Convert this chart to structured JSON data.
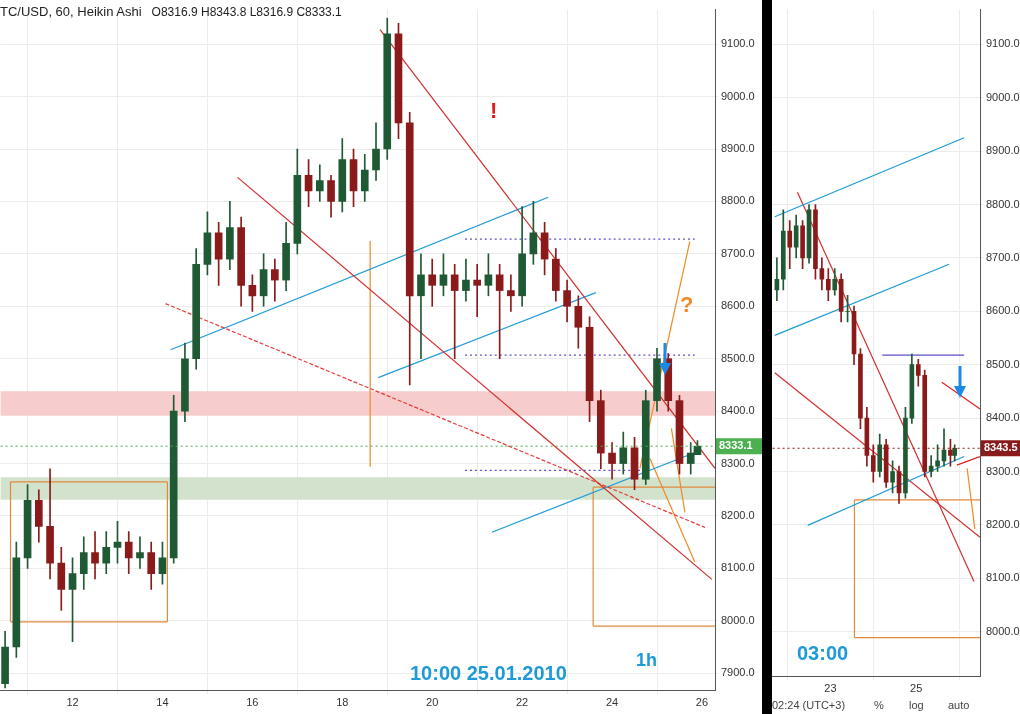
{
  "chart_data": [
    {
      "type": "candlestick",
      "title": "TC/USD, 60, Heikin Ashi",
      "subtitle": "O8316.9 H8343.8 L8316.9 C8333.1",
      "grid": true,
      "xlim": [
        10.4,
        26.29
      ],
      "xticks": [
        12,
        14,
        16,
        18,
        20,
        22,
        24,
        26
      ],
      "ylim": [
        7868,
        9166
      ],
      "yticks": [
        {
          "value": 7900,
          "label": "7900.0"
        },
        {
          "value": 8000,
          "label": "8000.0"
        },
        {
          "value": 8100,
          "label": "8100.0"
        },
        {
          "value": 8200,
          "label": "8200.0"
        },
        {
          "value": 8300,
          "label": "8300.0"
        },
        {
          "value": 8400,
          "label": "8400.0"
        },
        {
          "value": 8500,
          "label": "8500.0"
        },
        {
          "value": 8600,
          "label": "8600.0"
        },
        {
          "value": 8700,
          "label": "8700.0"
        },
        {
          "value": 8800,
          "label": "8800.0"
        },
        {
          "value": 8900,
          "label": "8900.0"
        },
        {
          "value": 9000,
          "label": "9000.0"
        },
        {
          "value": 9100,
          "label": "9100.0"
        }
      ],
      "x": [
        10.5,
        10.75,
        11,
        11.25,
        11.5,
        11.75,
        12,
        12.25,
        12.5,
        12.75,
        13,
        13.25,
        13.5,
        13.75,
        14,
        14.25,
        14.5,
        14.75,
        15,
        15.25,
        15.5,
        15.75,
        16,
        16.25,
        16.5,
        16.75,
        17,
        17.25,
        17.5,
        17.75,
        18,
        18.25,
        18.5,
        18.75,
        19,
        19.25,
        19.5,
        19.75,
        20,
        20.25,
        20.5,
        20.75,
        21,
        21.25,
        21.5,
        21.75,
        22,
        22.25,
        22.5,
        22.75,
        23,
        23.25,
        23.5,
        23.75,
        24,
        24.25,
        24.5,
        24.75,
        25,
        25.25,
        25.5,
        25.75,
        25.9
      ],
      "ohlc": [
        [
          7880,
          7980,
          7872,
          7950
        ],
        [
          7950,
          8150,
          7930,
          8120
        ],
        [
          8120,
          8260,
          8100,
          8230
        ],
        [
          8230,
          8250,
          8150,
          8180
        ],
        [
          8180,
          8290,
          8080,
          8110
        ],
        [
          8110,
          8140,
          8020,
          8060
        ],
        [
          8060,
          8120,
          7960,
          8090
        ],
        [
          8090,
          8160,
          8060,
          8130
        ],
        [
          8130,
          8170,
          8080,
          8110
        ],
        [
          8110,
          8170,
          8090,
          8140
        ],
        [
          8140,
          8190,
          8110,
          8150
        ],
        [
          8150,
          8170,
          8090,
          8120
        ],
        [
          8120,
          8160,
          8100,
          8130
        ],
        [
          8130,
          8150,
          8060,
          8090
        ],
        [
          8090,
          8150,
          8070,
          8120
        ],
        [
          8120,
          8430,
          8110,
          8400
        ],
        [
          8400,
          8530,
          8380,
          8500
        ],
        [
          8500,
          8710,
          8480,
          8680
        ],
        [
          8680,
          8780,
          8660,
          8740
        ],
        [
          8740,
          8760,
          8640,
          8690
        ],
        [
          8690,
          8800,
          8670,
          8750
        ],
        [
          8750,
          8770,
          8600,
          8640
        ],
        [
          8640,
          8660,
          8590,
          8620
        ],
        [
          8620,
          8700,
          8600,
          8670
        ],
        [
          8670,
          8690,
          8610,
          8650
        ],
        [
          8650,
          8760,
          8630,
          8720
        ],
        [
          8720,
          8900,
          8700,
          8850
        ],
        [
          8850,
          8880,
          8790,
          8820
        ],
        [
          8820,
          8870,
          8800,
          8840
        ],
        [
          8840,
          8850,
          8770,
          8800
        ],
        [
          8800,
          8920,
          8780,
          8880
        ],
        [
          8880,
          8900,
          8790,
          8820
        ],
        [
          8820,
          8890,
          8800,
          8860
        ],
        [
          8860,
          8950,
          8840,
          8900
        ],
        [
          8900,
          9150,
          8880,
          9120
        ],
        [
          9120,
          9140,
          8920,
          8950
        ],
        [
          8950,
          8970,
          8450,
          8620
        ],
        [
          8620,
          8700,
          8500,
          8660
        ],
        [
          8660,
          8690,
          8600,
          8640
        ],
        [
          8640,
          8700,
          8620,
          8660
        ],
        [
          8660,
          8680,
          8500,
          8630
        ],
        [
          8630,
          8690,
          8610,
          8650
        ],
        [
          8650,
          8680,
          8580,
          8640
        ],
        [
          8640,
          8700,
          8620,
          8660
        ],
        [
          8660,
          8680,
          8500,
          8630
        ],
        [
          8630,
          8660,
          8590,
          8620
        ],
        [
          8620,
          8790,
          8600,
          8700
        ],
        [
          8700,
          8800,
          8680,
          8740
        ],
        [
          8740,
          8760,
          8660,
          8690
        ],
        [
          8690,
          8710,
          8610,
          8630
        ],
        [
          8630,
          8650,
          8570,
          8600
        ],
        [
          8600,
          8620,
          8520,
          8560
        ],
        [
          8560,
          8580,
          8380,
          8420
        ],
        [
          8420,
          8440,
          8290,
          8320
        ],
        [
          8320,
          8340,
          8270,
          8300
        ],
        [
          8300,
          8360,
          8280,
          8330
        ],
        [
          8330,
          8350,
          8250,
          8270
        ],
        [
          8270,
          8440,
          8260,
          8420
        ],
        [
          8420,
          8520,
          8400,
          8500
        ],
        [
          8500,
          8510,
          8400,
          8420
        ],
        [
          8420,
          8430,
          8280,
          8300
        ],
        [
          8300,
          8340,
          8280,
          8320
        ],
        [
          8316.9,
          8343.8,
          8316.9,
          8333.1
        ]
      ],
      "series": [
        {
          "type": "line",
          "x": [
            18.84,
            26.29
          ],
          "values": [
            9128,
            8291
          ],
          "color": "#d32f2f"
        },
        {
          "type": "line",
          "x": [
            15.67,
            26.22
          ],
          "values": [
            8846,
            8079
          ],
          "color": "#d32f2f"
        },
        {
          "type": "line",
          "x": [
            14.07,
            26.07
          ],
          "values": [
            8605,
            8178
          ],
          "color": "#e53935",
          "line_style": "dashed"
        },
        {
          "type": "line",
          "x": [
            14.18,
            22.58
          ],
          "values": [
            8517,
            8808
          ],
          "color": "#1e9bd7"
        },
        {
          "type": "line",
          "x": [
            18.8,
            23.64
          ],
          "values": [
            8464,
            8626
          ],
          "color": "#1e9bd7"
        },
        {
          "type": "line",
          "x": [
            21.33,
            25.96
          ],
          "values": [
            8169,
            8325
          ],
          "color": "#1e9bd7"
        },
        {
          "type": "line",
          "x": [
            20.73,
            25.84
          ],
          "values": [
            8728,
            8728
          ],
          "color": "#5b4fd0",
          "line_style": "dotted"
        },
        {
          "type": "line",
          "x": [
            20.73,
            25.84
          ],
          "values": [
            8507,
            8507
          ],
          "color": "#5b4fd0",
          "line_style": "dotted"
        },
        {
          "type": "line",
          "x": [
            20.73,
            24.62
          ],
          "values": [
            8287,
            8287
          ],
          "color": "#5b4fd0",
          "line_style": "dotted"
        },
        {
          "type": "line",
          "x": [
            10.62,
            14.11
          ],
          "values": [
            8265,
            8265
          ],
          "color": "#e08a3c"
        },
        {
          "type": "line",
          "x": [
            10.62,
            14.11
          ],
          "values": [
            7998,
            7998
          ],
          "color": "#e08a3c"
        },
        {
          "type": "line",
          "x": [
            10.62,
            10.62
          ],
          "values": [
            7998,
            8265
          ],
          "color": "#e08a3c"
        },
        {
          "type": "line",
          "x": [
            14.11,
            14.11
          ],
          "values": [
            7998,
            8265
          ],
          "color": "#e08a3c"
        },
        {
          "type": "line",
          "x": [
            23.58,
            26.29
          ],
          "values": [
            8255,
            8255
          ],
          "color": "#e08a3c"
        },
        {
          "type": "line",
          "x": [
            23.58,
            26.29
          ],
          "values": [
            7990,
            7990
          ],
          "color": "#e08a3c"
        },
        {
          "type": "line",
          "x": [
            23.58,
            23.58
          ],
          "values": [
            7990,
            8255
          ],
          "color": "#e08a3c"
        },
        {
          "type": "line",
          "x": [
            18.62,
            18.62
          ],
          "values": [
            8724,
            8295
          ],
          "color": "#f08a24"
        },
        {
          "type": "line",
          "x": [
            24.62,
            25.73
          ],
          "values": [
            8291,
            8724
          ],
          "color": "#f08a24"
        },
        {
          "type": "line",
          "x": [
            24.84,
            25.84
          ],
          "values": [
            8310,
            8112
          ],
          "color": "#f08a24"
        },
        {
          "type": "line",
          "x": [
            25.32,
            25.62
          ],
          "values": [
            8367,
            8207
          ],
          "color": "#f08a24"
        }
      ],
      "bands": [
        {
          "axis": "y",
          "from": 8391,
          "to": 8438,
          "color": "#f6cccc"
        },
        {
          "axis": "y",
          "from": 8231,
          "to": 8274,
          "color": "#d3e2cc"
        }
      ],
      "ref_lines": [
        {
          "axis": "y",
          "value": 8333.1,
          "label": "8333.1",
          "color": "#4caf50",
          "line_style": "dotted"
        }
      ],
      "annotations": [
        "10:00  25.01.2010",
        "1h",
        "!",
        "?"
      ]
    },
    {
      "type": "candlestick",
      "grid": true,
      "xlim": [
        21.65,
        26.49
      ],
      "xticks": [
        23,
        25
      ],
      "ylim": [
        7917,
        9165
      ],
      "yticks": [
        {
          "value": 8000,
          "label": "8000.0"
        },
        {
          "value": 8100,
          "label": "8100.0"
        },
        {
          "value": 8200,
          "label": "8200.0"
        },
        {
          "value": 8300,
          "label": "8300.0"
        },
        {
          "value": 8400,
          "label": "8400.0"
        },
        {
          "value": 8500,
          "label": "8500.0"
        },
        {
          "value": 8600,
          "label": "8600.0"
        },
        {
          "value": 8700,
          "label": "8700.0"
        },
        {
          "value": 8800,
          "label": "8800.0"
        },
        {
          "value": 8900,
          "label": "8900.0"
        },
        {
          "value": 9000,
          "label": "9000.0"
        },
        {
          "value": 9100,
          "label": "9100.0"
        }
      ],
      "x": [
        21.75,
        21.9,
        22.05,
        22.2,
        22.35,
        22.5,
        22.65,
        22.8,
        22.95,
        23.1,
        23.25,
        23.4,
        23.55,
        23.7,
        23.85,
        24,
        24.15,
        24.3,
        24.45,
        24.6,
        24.75,
        24.9,
        25.05,
        25.2,
        25.35,
        25.5,
        25.65,
        25.8,
        25.9
      ],
      "ohlc": [
        [
          8640,
          8700,
          8620,
          8660
        ],
        [
          8660,
          8790,
          8640,
          8750
        ],
        [
          8750,
          8770,
          8680,
          8720
        ],
        [
          8720,
          8780,
          8700,
          8760
        ],
        [
          8760,
          8770,
          8680,
          8700
        ],
        [
          8700,
          8800,
          8690,
          8790
        ],
        [
          8790,
          8800,
          8660,
          8680
        ],
        [
          8680,
          8700,
          8640,
          8660
        ],
        [
          8660,
          8680,
          8620,
          8640
        ],
        [
          8640,
          8680,
          8630,
          8660
        ],
        [
          8660,
          8670,
          8580,
          8600
        ],
        [
          8600,
          8630,
          8580,
          8600
        ],
        [
          8600,
          8610,
          8500,
          8520
        ],
        [
          8520,
          8530,
          8380,
          8400
        ],
        [
          8400,
          8420,
          8310,
          8330
        ],
        [
          8330,
          8350,
          8280,
          8300
        ],
        [
          8300,
          8370,
          8290,
          8350
        ],
        [
          8350,
          8360,
          8270,
          8280
        ],
        [
          8280,
          8320,
          8260,
          8300
        ],
        [
          8300,
          8310,
          8240,
          8260
        ],
        [
          8260,
          8420,
          8250,
          8400
        ],
        [
          8400,
          8520,
          8390,
          8500
        ],
        [
          8500,
          8510,
          8460,
          8480
        ],
        [
          8480,
          8490,
          8290,
          8300
        ],
        [
          8300,
          8330,
          8290,
          8310
        ],
        [
          8310,
          8350,
          8300,
          8320
        ],
        [
          8320,
          8380,
          8310,
          8340
        ],
        [
          8340,
          8360,
          8310,
          8330
        ],
        [
          8330,
          8350,
          8320,
          8343.5
        ]
      ],
      "series": [
        {
          "type": "line",
          "x": [
            21.7,
            26.12
          ],
          "values": [
            8777,
            8925
          ],
          "color": "#1e9bd7"
        },
        {
          "type": "line",
          "x": [
            21.7,
            25.77
          ],
          "values": [
            8555,
            8688
          ],
          "color": "#1e9bd7"
        },
        {
          "type": "line",
          "x": [
            22.47,
            26.12
          ],
          "values": [
            8199,
            8328
          ],
          "color": "#1e9bd7"
        },
        {
          "type": "line",
          "x": [
            22.23,
            26.35
          ],
          "values": [
            8823,
            8094
          ],
          "color": "#d32f2f"
        },
        {
          "type": "line",
          "x": [
            21.7,
            26.49
          ],
          "values": [
            8485,
            8177
          ],
          "color": "#d32f2f"
        },
        {
          "type": "line",
          "x": [
            24.21,
            26.12
          ],
          "values": [
            8518,
            8518
          ],
          "color": "#5b4fd0"
        },
        {
          "type": "line",
          "x": [
            25.6,
            26.49
          ],
          "values": [
            8467,
            8417
          ],
          "color": "#e02020"
        },
        {
          "type": "line",
          "x": [
            25.95,
            26.49
          ],
          "values": [
            8312,
            8328
          ],
          "color": "#e02020"
        },
        {
          "type": "line",
          "x": [
            23.56,
            26.49
          ],
          "values": [
            8247,
            8247
          ],
          "color": "#e08a3c"
        },
        {
          "type": "line",
          "x": [
            23.56,
            26.49
          ],
          "values": [
            7989,
            7989
          ],
          "color": "#e08a3c"
        },
        {
          "type": "line",
          "x": [
            23.56,
            23.56
          ],
          "values": [
            7989,
            8247
          ],
          "color": "#e08a3c"
        },
        {
          "type": "line",
          "x": [
            26.19,
            26.37
          ],
          "values": [
            8306,
            8192
          ],
          "color": "#f08a24"
        }
      ],
      "ref_lines": [
        {
          "axis": "y",
          "value": 8343.5,
          "label": "8343.5",
          "color": "#8b1a1a",
          "line_style": "dotted"
        }
      ],
      "annotations": [
        "03:00",
        "02:24 (UTC+3)",
        "%",
        "log",
        "auto"
      ]
    }
  ]
}
